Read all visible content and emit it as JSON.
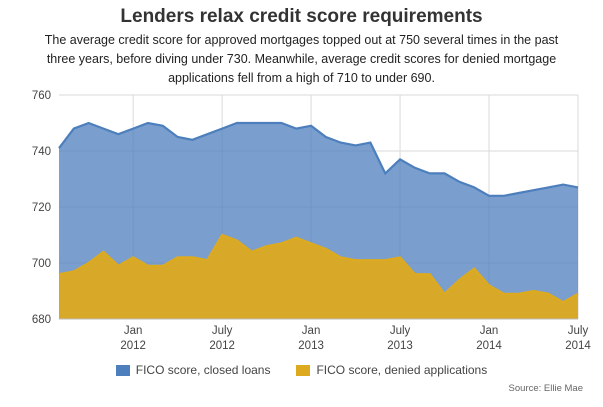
{
  "title": "Lenders relax credit score requirements",
  "subtitle": "The average credit score for approved mortgages topped out at 750 several times in the past three years, before diving under 730. Meanwhile, average credit scores for denied mortgage applications fell from a high of 710 to under 690.",
  "source": "Source: Ellie Mae",
  "colors": {
    "closed": "#4d7fbd",
    "denied": "#ddaa1f",
    "grid": "#d9d9d9"
  },
  "chart_data": {
    "type": "area",
    "title": "Lenders relax credit score requirements",
    "ylim": [
      680,
      760
    ],
    "yticks": [
      680,
      700,
      720,
      740,
      760
    ],
    "grid": true,
    "legend_position": "bottom",
    "x": [
      "2011-08",
      "2011-09",
      "2011-10",
      "2011-11",
      "2011-12",
      "2012-01",
      "2012-02",
      "2012-03",
      "2012-04",
      "2012-05",
      "2012-06",
      "2012-07",
      "2012-08",
      "2012-09",
      "2012-10",
      "2012-11",
      "2012-12",
      "2013-01",
      "2013-02",
      "2013-03",
      "2013-04",
      "2013-05",
      "2013-06",
      "2013-07",
      "2013-08",
      "2013-09",
      "2013-10",
      "2013-11",
      "2013-12",
      "2014-01",
      "2014-02",
      "2014-03",
      "2014-04",
      "2014-05",
      "2014-06",
      "2014-07"
    ],
    "xticks": [
      {
        "index": 5,
        "line1": "Jan",
        "line2": "2012"
      },
      {
        "index": 11,
        "line1": "July",
        "line2": "2012"
      },
      {
        "index": 17,
        "line1": "Jan",
        "line2": "2013"
      },
      {
        "index": 23,
        "line1": "July",
        "line2": "2013"
      },
      {
        "index": 29,
        "line1": "Jan",
        "line2": "2014"
      },
      {
        "index": 35,
        "line1": "July",
        "line2": "2014"
      }
    ],
    "series": [
      {
        "name": "FICO score, closed loans",
        "key": "closed",
        "values": [
          741,
          748,
          750,
          748,
          746,
          748,
          750,
          749,
          745,
          744,
          746,
          748,
          750,
          750,
          750,
          750,
          748,
          749,
          745,
          743,
          742,
          743,
          732,
          737,
          734,
          732,
          732,
          729,
          727,
          724,
          724,
          725,
          726,
          727,
          728,
          727
        ]
      },
      {
        "name": "FICO score, denied applications",
        "key": "denied",
        "values": [
          696,
          697,
          700,
          704,
          699,
          702,
          699,
          699,
          702,
          702,
          701,
          710,
          708,
          704,
          706,
          707,
          709,
          707,
          705,
          702,
          701,
          701,
          701,
          702,
          696,
          696,
          689,
          694,
          698,
          692,
          689,
          689,
          690,
          689,
          686,
          689
        ]
      }
    ]
  }
}
